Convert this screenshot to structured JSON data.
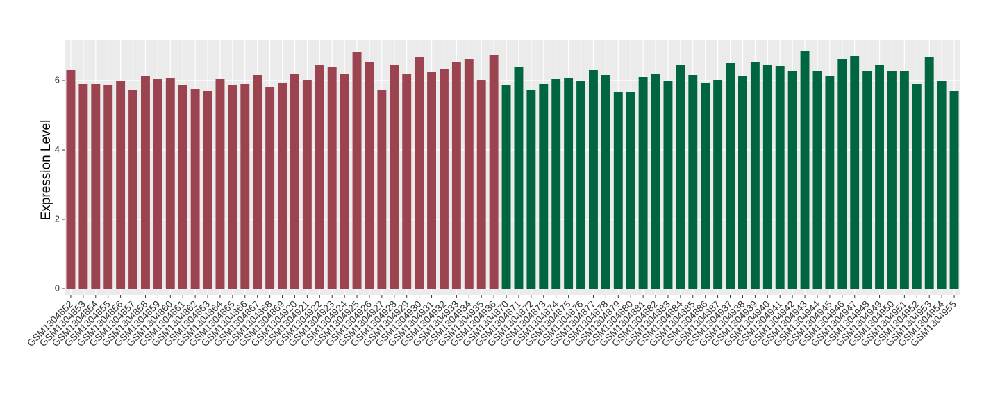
{
  "chart_data": {
    "type": "bar",
    "y_label": "Expression Level",
    "ylim": [
      -0.18,
      7.18
    ],
    "yticks": [
      0,
      2,
      4,
      6
    ],
    "grid": true,
    "background": "#ebebeb",
    "series": [
      {
        "color": "#9b4450",
        "categories": [
          "GSM1304852",
          "GSM1304853",
          "GSM1304854",
          "GSM1304855",
          "GSM1304856",
          "GSM1304857",
          "GSM1304858",
          "GSM1304859",
          "GSM1304860",
          "GSM1304861",
          "GSM1304862",
          "GSM1304863",
          "GSM1304864",
          "GSM1304865",
          "GSM1304866",
          "GSM1304867",
          "GSM1304868",
          "GSM1304869",
          "GSM1304920",
          "GSM1304921",
          "GSM1304922",
          "GSM1304923",
          "GSM1304924",
          "GSM1304925",
          "GSM1304926",
          "GSM1304927",
          "GSM1304928",
          "GSM1304929",
          "GSM1304930",
          "GSM1304931",
          "GSM1304932",
          "GSM1304933",
          "GSM1304934",
          "GSM1304935",
          "GSM1304936"
        ],
        "values": [
          6.3,
          5.9,
          5.9,
          5.88,
          5.98,
          5.74,
          6.12,
          6.04,
          6.08,
          5.86,
          5.76,
          5.7,
          6.04,
          5.88,
          5.9,
          6.16,
          5.8,
          5.92,
          6.2,
          6.02,
          6.44,
          6.4,
          6.2,
          6.82,
          6.54,
          5.72,
          6.46,
          6.18,
          6.68,
          6.24,
          6.32,
          6.54,
          6.62,
          6.02,
          6.74
        ]
      },
      {
        "color": "#006640",
        "categories": [
          "GSM1304870",
          "GSM1304871",
          "GSM1304872",
          "GSM1304873",
          "GSM1304874",
          "GSM1304875",
          "GSM1304876",
          "GSM1304877",
          "GSM1304878",
          "GSM1304879",
          "GSM1304880",
          "GSM1304881",
          "GSM1304882",
          "GSM1304883",
          "GSM1304884",
          "GSM1304885",
          "GSM1304886",
          "GSM1304887",
          "GSM1304937",
          "GSM1304938",
          "GSM1304939",
          "GSM1304940",
          "GSM1304941",
          "GSM1304942",
          "GSM1304943",
          "GSM1304944",
          "GSM1304945",
          "GSM1304946",
          "GSM1304947",
          "GSM1304948",
          "GSM1304949",
          "GSM1304950",
          "GSM1304951",
          "GSM1304952",
          "GSM1304953",
          "GSM1304954",
          "GSM1304955"
        ],
        "values": [
          5.86,
          6.38,
          5.72,
          5.9,
          6.04,
          6.06,
          5.98,
          6.3,
          6.16,
          5.68,
          5.68,
          6.1,
          6.18,
          5.98,
          6.44,
          6.16,
          5.94,
          6.02,
          6.5,
          6.14,
          6.54,
          6.46,
          6.42,
          6.28,
          6.84,
          6.28,
          6.14,
          6.62,
          6.72,
          6.28,
          6.46,
          6.28,
          6.26,
          5.9,
          6.68,
          6.0,
          5.7
        ]
      }
    ]
  }
}
